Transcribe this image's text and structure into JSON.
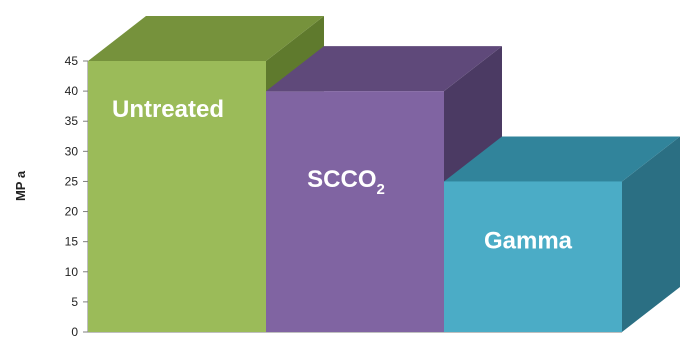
{
  "chart_data": {
    "type": "bar",
    "categories": [
      "Untreated",
      "SCCO2",
      "Gamma"
    ],
    "category_labels": [
      {
        "main": "Untreated",
        "sub": ""
      },
      {
        "main": "SCCO",
        "sub": "2"
      },
      {
        "main": "Gamma",
        "sub": ""
      }
    ],
    "values": [
      45,
      40,
      25
    ],
    "ylabel": "MP a",
    "xlabel": "",
    "ylim": [
      0,
      45
    ],
    "yticks": [
      0,
      5,
      10,
      15,
      20,
      25,
      30,
      35,
      40,
      45
    ],
    "grid": false,
    "legend": "none",
    "style": "3d-column",
    "colors": {
      "front": [
        "#9bbb59",
        "#8064a2",
        "#4bacc6"
      ],
      "top": [
        "#76923c",
        "#5f497a",
        "#31849b"
      ],
      "side": [
        "#5f7a2d",
        "#4b3a63",
        "#2b6f83"
      ]
    }
  }
}
